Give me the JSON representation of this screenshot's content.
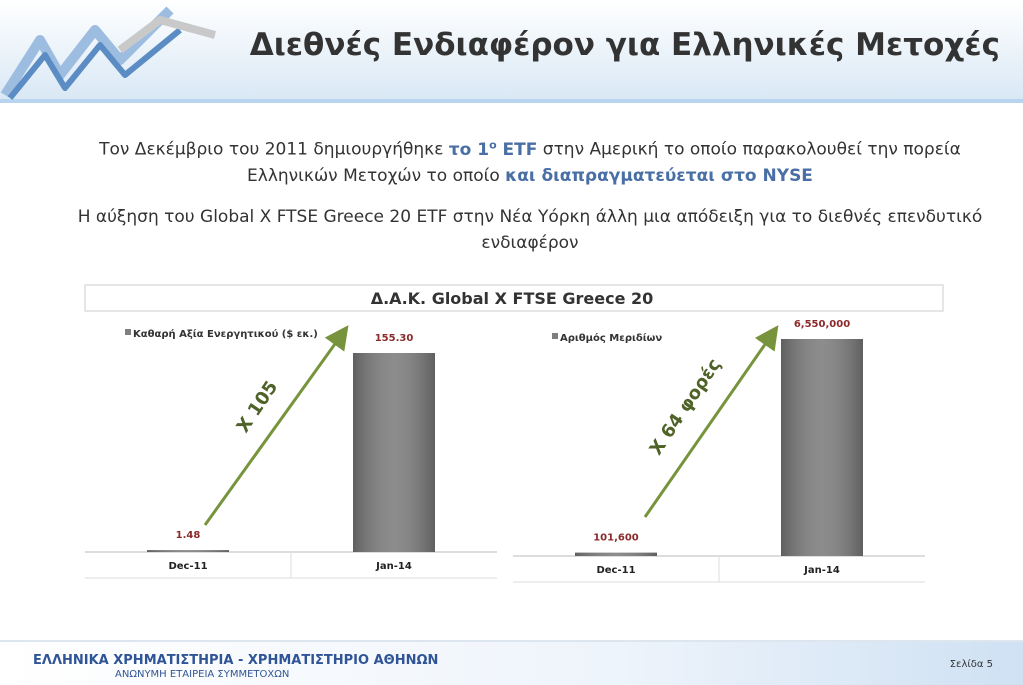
{
  "title": "Διεθνές Ενδιαφέρον για Ελληνικές Μετοχές",
  "paragraph_1": [
    "Τον Δεκέμβριο του 2011 δημιουργήθηκε ",
    "το 1",
    "ο",
    " ETF",
    " στην Αμερική το οποίο παρακολουθεί την πορεία Ελληνικών Μετοχών το οποίο ",
    "και διαπραγματεύεται στο NYSE"
  ],
  "paragraph_2": "Η αύξηση του Global X FTSE Greece 20 ETF στην Νέα Υόρκη άλλη μια απόδειξη για το διεθνές επενδυτικό  ενδιαφέρον",
  "panel_title": "Δ.Α.Κ. Global X FTSE Greece 20",
  "chart_data": [
    {
      "type": "bar",
      "categories": [
        "Dec-11",
        "Jan-14"
      ],
      "series": [
        {
          "name": "Καθαρή Αξία Ενεργητικού ($ εκ.)",
          "color": "#7f7f7f",
          "values": [
            1.48,
            155.3
          ],
          "value_labels": [
            "1.48",
            "155.30"
          ]
        }
      ],
      "annotation": "X 105"
    },
    {
      "type": "bar",
      "categories": [
        "Dec-11",
        "Jan-14"
      ],
      "series": [
        {
          "name": "Αριθμός Μεριδίων",
          "color": "#7f7f7f",
          "values": [
            101600,
            6550000
          ],
          "value_labels": [
            "101,600",
            "6,550,000"
          ]
        }
      ],
      "annotation": "X 64  φορές"
    }
  ],
  "footer": {
    "company": "ΕΛΛΗΝΙΚΑ ΧΡΗΜΑΤΙΣΤΗΡΙΑ - ΧΡΗΜΑΤΙΣΤΗΡΙΟ ΑΘΗΝΩΝ",
    "subtitle": "ΑΝΩΝΥΜΗ ΕΤΑΙΡΕΙΑ ΣΥΜΜΕΤΟΧΩΝ",
    "page": "Σελίδα 5"
  }
}
